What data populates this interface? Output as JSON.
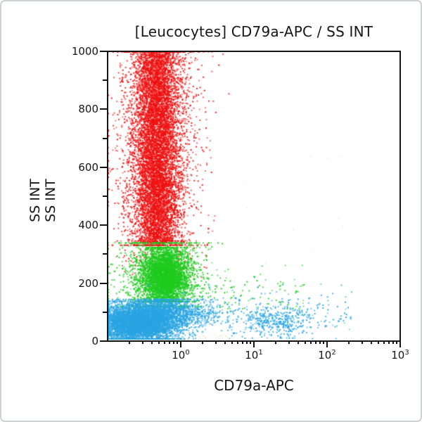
{
  "chart_data": {
    "type": "scatter",
    "variant": "flow-cytometry-dot-plot",
    "title": "[Leucocytes] CD79a-APC / SS INT",
    "xlabel": "CD79a-APC",
    "ylabel": "SS INT",
    "ylabel_lines": [
      "SS INT",
      "SS INT"
    ],
    "legend": "none",
    "grid": false,
    "x_axis": {
      "scale": "log",
      "min_exp": -1,
      "max_exp": 3,
      "tick_label_base": "10",
      "major_tick_exponents": [
        0,
        1,
        2,
        3
      ],
      "minor_tick_multiples": [
        2,
        3,
        4,
        5,
        6,
        7,
        8,
        9
      ]
    },
    "y_axis": {
      "scale": "linear",
      "min": 0,
      "max": 1000,
      "major_ticks": [
        0,
        200,
        400,
        600,
        800,
        1000
      ],
      "minor_ticks": [
        100,
        300,
        500,
        700,
        900
      ]
    },
    "colors": {
      "granulocytes": "#ee1010",
      "monocytes": "#1ecb1e",
      "lymphocytes": "#29a4e2",
      "b_cells": "#29a4e2",
      "debris": "#c9bd96"
    },
    "populations": [
      {
        "name": "granulocytes",
        "color": "#ee1010",
        "blobs": [
          {
            "n": 6800,
            "size": 2,
            "x": {
              "type": "gauss",
              "c": -0.33,
              "s": 0.155
            },
            "y": {
              "type": "uniform",
              "min": 335,
              "max": 1000
            }
          },
          {
            "n": 2300,
            "size": 2,
            "x": {
              "type": "gauss",
              "c": -0.33,
              "s": 0.29
            },
            "y": {
              "type": "gauss",
              "c": 660,
              "s": 215
            },
            "clamp_y": [
              330,
              1000
            ]
          },
          {
            "n": 160,
            "size": 2,
            "x": {
              "type": "gauss",
              "c": -0.3,
              "s": 0.28
            },
            "y": {
              "type": "gauss",
              "c": 300,
              "s": 55
            },
            "clamp_y": [
              140,
              345
            ]
          }
        ]
      },
      {
        "name": "monocytes",
        "color": "#1ecb1e",
        "blobs": [
          {
            "n": 3600,
            "size": 2,
            "x": {
              "type": "gauss",
              "c": -0.22,
              "s": 0.16
            },
            "y": {
              "type": "gauss",
              "c": 222,
              "s": 50
            },
            "clamp_y": [
              135,
              322
            ]
          },
          {
            "n": 1300,
            "size": 2,
            "x": {
              "type": "gauss",
              "c": -0.28,
              "s": 0.3
            },
            "y": {
              "type": "gauss",
              "c": 225,
              "s": 78
            },
            "clamp_y": [
              118,
              338
            ]
          },
          {
            "n": 130,
            "size": 2,
            "x": {
              "type": "uniform",
              "min": -0.3,
              "max": 1.7
            },
            "y": {
              "type": "gauss",
              "c": 165,
              "s": 38
            },
            "clamp_y": [
              110,
              260
            ]
          }
        ]
      },
      {
        "name": "lymphocytes",
        "color": "#29a4e2",
        "blobs": [
          {
            "n": 5200,
            "size": 2,
            "x": {
              "type": "gauss",
              "c": -0.6,
              "s": 0.3
            },
            "y": {
              "type": "gauss",
              "c": 58,
              "s": 34
            },
            "clamp_y": [
              5,
              136
            ]
          },
          {
            "n": 1700,
            "size": 2,
            "x": {
              "type": "gauss",
              "c": -0.25,
              "s": 0.33
            },
            "y": {
              "type": "gauss",
              "c": 96,
              "s": 28
            },
            "clamp_y": [
              12,
              142
            ]
          },
          {
            "n": 260,
            "size": 2,
            "x": {
              "type": "uniform",
              "min": -0.6,
              "max": 2.35
            },
            "y": {
              "type": "gauss",
              "c": 100,
              "s": 42
            },
            "clamp_y": [
              6,
              195
            ]
          }
        ]
      },
      {
        "name": "b_cells_cd79a_positive",
        "color": "#29a4e2",
        "blobs": [
          {
            "n": 430,
            "size": 2,
            "x": {
              "type": "gauss",
              "c": 1.27,
              "s": 0.26
            },
            "clamp_x": [
              0.55,
              2.25
            ],
            "y": {
              "type": "gauss",
              "c": 66,
              "s": 29
            },
            "clamp_y": [
              8,
              168
            ]
          }
        ]
      },
      {
        "name": "debris",
        "color": "#c9bd96",
        "blobs": [
          {
            "n": 70,
            "size": 1,
            "x": {
              "type": "uniform",
              "min": -1,
              "max": 0.7
            },
            "y": {
              "type": "uniform",
              "min": 2,
              "max": 26
            }
          },
          {
            "n": 14,
            "size": 1,
            "color": "#bcbcbc",
            "x": {
              "type": "uniform",
              "min": 0.2,
              "max": 2.3
            },
            "y": {
              "type": "uniform",
              "min": 240,
              "max": 700
            }
          }
        ]
      }
    ]
  }
}
